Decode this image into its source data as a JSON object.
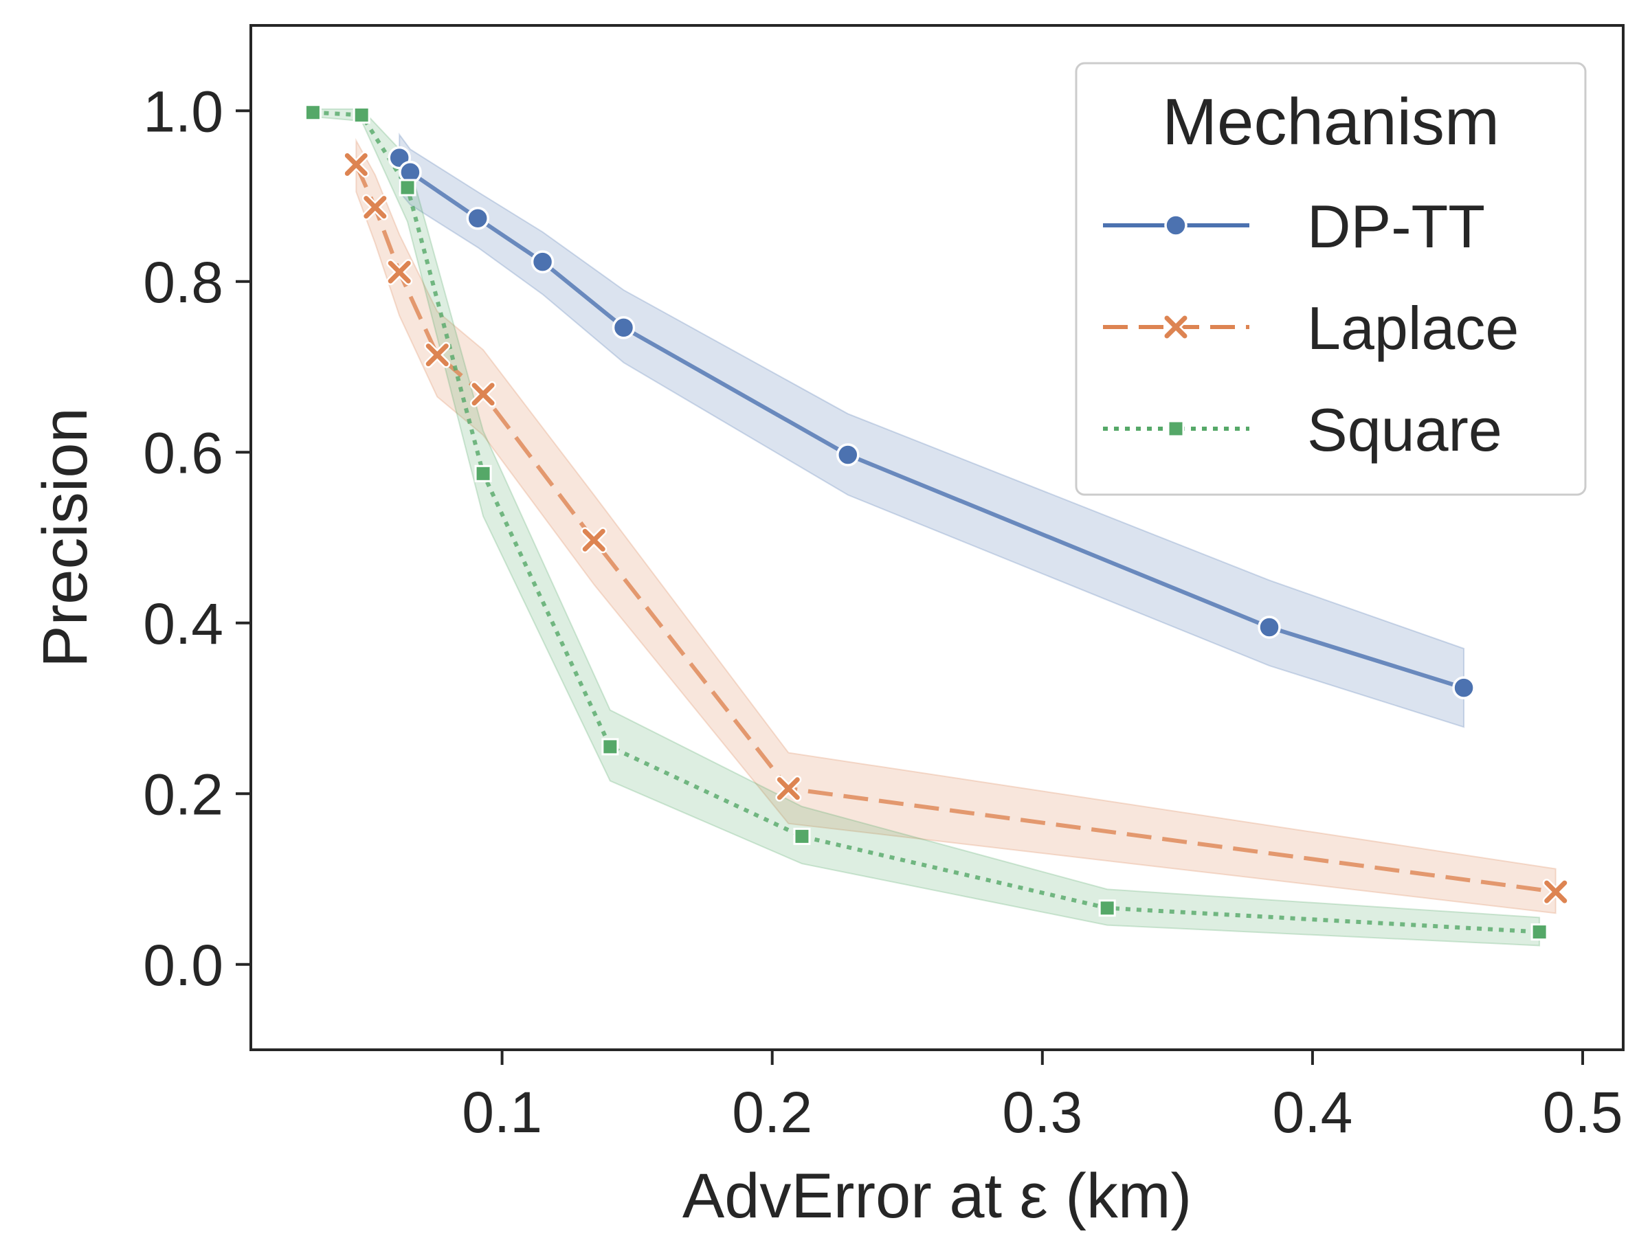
{
  "chart_data": {
    "type": "line",
    "title": "",
    "xlabel": "AdvError at ε (km)",
    "ylabel": "Precision",
    "xlim": [
      0.007,
      0.515
    ],
    "ylim": [
      -0.1,
      1.1
    ],
    "xticks": [
      0.1,
      0.2,
      0.3,
      0.4,
      0.5
    ],
    "yticks": [
      0.0,
      0.2,
      0.4,
      0.6,
      0.8,
      1.0
    ],
    "xtick_labels": [
      "0.1",
      "0.2",
      "0.3",
      "0.4",
      "0.5"
    ],
    "ytick_labels": [
      "0.0",
      "0.2",
      "0.4",
      "0.6",
      "0.8",
      "1.0"
    ],
    "grid": false,
    "legend": {
      "title": "Mechanism",
      "placement": "top-right"
    },
    "series": [
      {
        "name": "DP-TT",
        "color": "#4c72b0",
        "marker": "circle",
        "linestyle": "solid",
        "points": [
          {
            "x": 0.062,
            "y": 0.945,
            "lo": 0.905,
            "hi": 0.972
          },
          {
            "x": 0.066,
            "y": 0.928,
            "lo": 0.89,
            "hi": 0.955
          },
          {
            "x": 0.091,
            "y": 0.874,
            "lo": 0.84,
            "hi": 0.905
          },
          {
            "x": 0.115,
            "y": 0.823,
            "lo": 0.785,
            "hi": 0.858
          },
          {
            "x": 0.145,
            "y": 0.746,
            "lo": 0.705,
            "hi": 0.79
          },
          {
            "x": 0.228,
            "y": 0.597,
            "lo": 0.55,
            "hi": 0.645
          },
          {
            "x": 0.384,
            "y": 0.395,
            "lo": 0.35,
            "hi": 0.45
          },
          {
            "x": 0.456,
            "y": 0.324,
            "lo": 0.278,
            "hi": 0.37
          }
        ]
      },
      {
        "name": "Laplace",
        "color": "#dd8452",
        "marker": "x",
        "linestyle": "dashed",
        "points": [
          {
            "x": 0.046,
            "y": 0.937,
            "lo": 0.905,
            "hi": 0.965
          },
          {
            "x": 0.053,
            "y": 0.887,
            "lo": 0.845,
            "hi": 0.925
          },
          {
            "x": 0.062,
            "y": 0.811,
            "lo": 0.76,
            "hi": 0.855
          },
          {
            "x": 0.076,
            "y": 0.714,
            "lo": 0.665,
            "hi": 0.765
          },
          {
            "x": 0.093,
            "y": 0.668,
            "lo": 0.62,
            "hi": 0.72
          },
          {
            "x": 0.134,
            "y": 0.497,
            "lo": 0.445,
            "hi": 0.55
          },
          {
            "x": 0.206,
            "y": 0.206,
            "lo": 0.165,
            "hi": 0.248
          },
          {
            "x": 0.49,
            "y": 0.085,
            "lo": 0.06,
            "hi": 0.112
          }
        ]
      },
      {
        "name": "Square",
        "color": "#55a868",
        "marker": "square",
        "linestyle": "dotted",
        "points": [
          {
            "x": 0.03,
            "y": 0.998,
            "lo": 0.993,
            "hi": 1.002
          },
          {
            "x": 0.048,
            "y": 0.995,
            "lo": 0.988,
            "hi": 1.002
          },
          {
            "x": 0.065,
            "y": 0.91,
            "lo": 0.87,
            "hi": 0.945
          },
          {
            "x": 0.093,
            "y": 0.575,
            "lo": 0.525,
            "hi": 0.625
          },
          {
            "x": 0.14,
            "y": 0.255,
            "lo": 0.215,
            "hi": 0.298
          },
          {
            "x": 0.211,
            "y": 0.15,
            "lo": 0.118,
            "hi": 0.185
          },
          {
            "x": 0.324,
            "y": 0.066,
            "lo": 0.046,
            "hi": 0.088
          },
          {
            "x": 0.484,
            "y": 0.038,
            "lo": 0.022,
            "hi": 0.055
          }
        ]
      }
    ]
  }
}
